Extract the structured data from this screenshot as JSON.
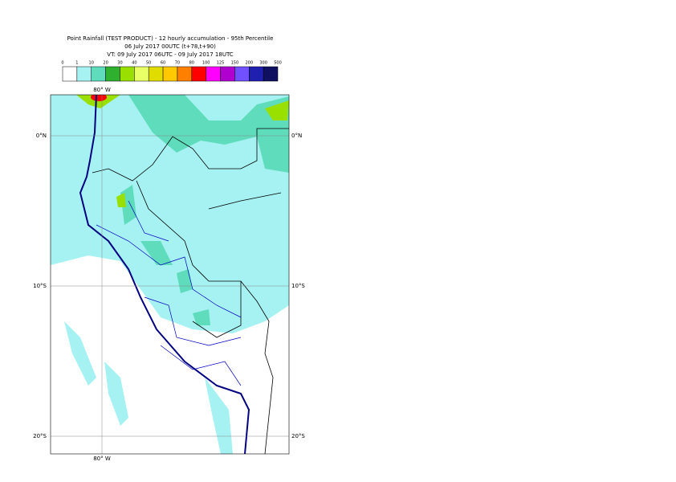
{
  "header": {
    "title": "Point Rainfall (TEST PRODUCT) - 12 hourly accumulation - 95th Percentile",
    "base_time": "06 July 2017 00UTC (t+78,t+90)",
    "valid_time": "VT: 09 July 2017 06UTC - 09 July 2017 18UTC"
  },
  "legend": {
    "levels": [
      0,
      1,
      10,
      20,
      30,
      40,
      50,
      60,
      70,
      80,
      100,
      125,
      150,
      200,
      300,
      500
    ],
    "colors": [
      "#ffffff",
      "#a6f2f2",
      "#5edcbc",
      "#2fb02f",
      "#99e000",
      "#e8ff66",
      "#e0dc00",
      "#ffc800",
      "#ff8000",
      "#ff0000",
      "#ff00ff",
      "#b000d0",
      "#7050ff",
      "#2020b0",
      "#101060"
    ]
  },
  "map": {
    "lon_label_top": "80° W",
    "lon_label_bottom": "80° W",
    "lat_labels": [
      "0°N",
      "10°S",
      "20°S"
    ]
  }
}
